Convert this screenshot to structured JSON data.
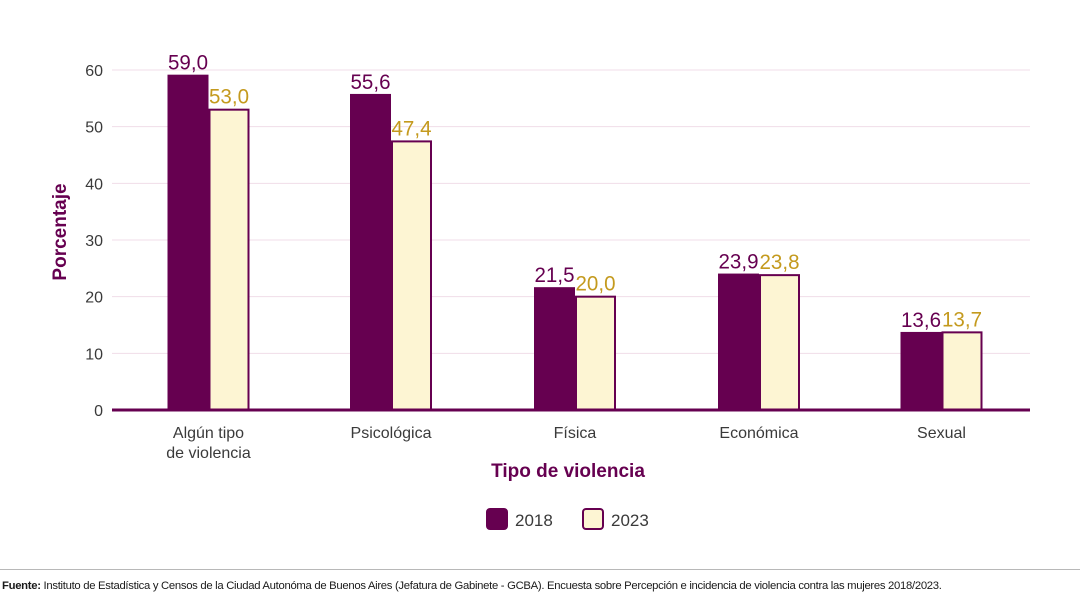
{
  "chart_data": {
    "type": "bar",
    "categories": [
      [
        "Algún tipo",
        "de violencia"
      ],
      [
        "Psicológica"
      ],
      [
        "Física"
      ],
      [
        "Económica"
      ],
      [
        "Sexual"
      ]
    ],
    "series": [
      {
        "name": "2018",
        "values": [
          59.0,
          55.6,
          21.5,
          23.9,
          13.6
        ],
        "labels": [
          "59,0",
          "55,6",
          "21,5",
          "23,9",
          "13,6"
        ],
        "color": "#660050",
        "label_color": "#660050"
      },
      {
        "name": "2023",
        "values": [
          53.0,
          47.4,
          20.0,
          23.8,
          13.7
        ],
        "labels": [
          "53,0",
          "47,4",
          "20,0",
          "23,8",
          "13,7"
        ],
        "color": "#fdf5d3",
        "label_color": "#c49a1e"
      }
    ],
    "xlabel": "Tipo de violencia",
    "ylabel": "Porcentaje",
    "ylim": [
      0,
      60
    ],
    "yticks": [
      0,
      10,
      20,
      30,
      40,
      50,
      60
    ],
    "grid": true,
    "legend": "bottom-center",
    "axis_color": "#660050",
    "grid_color": "#f0dde8"
  },
  "source": {
    "prefix": "Fuente:",
    "text": " Instituto de Estadística y Censos de la Ciudad Autonóma de Buenos Aires (Jefatura de Gabinete - GCBA). Encuesta sobre Percepción e incidencia de violencia contra las mujeres 2018/2023."
  }
}
